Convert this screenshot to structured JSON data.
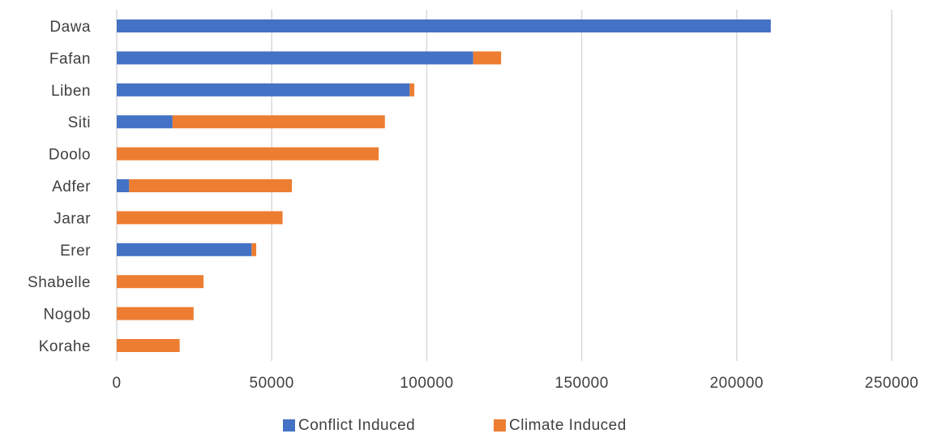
{
  "chart_data": {
    "type": "bar",
    "orientation": "horizontal",
    "stacked": true,
    "title": "",
    "xlabel": "",
    "ylabel": "",
    "categories": [
      "Dawa",
      "Fafan",
      "Liben",
      "Siti",
      "Doolo",
      "Adfer",
      "Jarar",
      "Erer",
      "Shabelle",
      "Nogob",
      "Korahe"
    ],
    "series": [
      {
        "name": "Conflict Induced",
        "color": "#4472c4",
        "values": [
          211000,
          115000,
          94500,
          18000,
          0,
          4000,
          0,
          43500,
          0,
          0,
          0
        ]
      },
      {
        "name": "Climate Induced",
        "color": "#ed7d31",
        "values": [
          0,
          9000,
          1500,
          68500,
          84500,
          52500,
          53500,
          1500,
          28000,
          24800,
          20300
        ]
      }
    ],
    "xlim": [
      0,
      250000
    ],
    "xticks": [
      "0",
      "50000",
      "100000",
      "150000",
      "200000",
      "250000"
    ],
    "xtick_values": [
      0,
      50000,
      100000,
      150000,
      200000,
      250000
    ],
    "grid": "vertical",
    "legend_position": "bottom"
  }
}
